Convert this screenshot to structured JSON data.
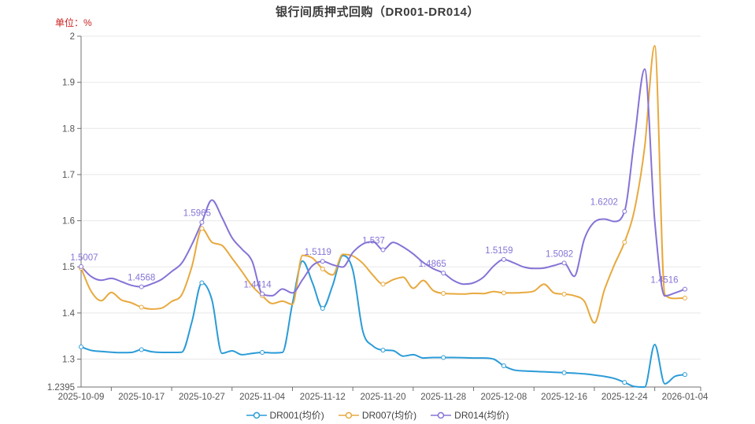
{
  "title": "银行间质押式回购（DR001-DR014）",
  "unit_label": "单位：%",
  "colors": {
    "title": "#3a3a3a",
    "unit": "#cc2222",
    "axis_line": "#707070",
    "grid_line": "#e8e8e8",
    "tick_text": "#555555",
    "value_label": "#8673d6"
  },
  "chart_data": {
    "type": "line",
    "title": "银行间质押式回购（DR001-DR014）",
    "ylabel": "单位：%",
    "ylim": [
      1.2395,
      2.0
    ],
    "y_ticks": [
      1.3,
      1.4,
      1.5,
      1.6,
      1.7,
      1.8,
      1.9,
      2
    ],
    "y_tick_labels": [
      "1.3",
      "1.4",
      "1.5",
      "1.6",
      "1.7",
      "1.8",
      "1.9",
      "2"
    ],
    "y_min_label": "1.2395",
    "x_tick_indices": [
      0,
      6,
      12,
      18,
      24,
      30,
      36,
      42,
      48,
      54,
      60
    ],
    "x_tick_labels": [
      "2025-10-09",
      "2025-10-17",
      "2025-10-27",
      "2025-11-04",
      "2025-11-12",
      "2025-11-20",
      "2025-11-28",
      "2025-12-08",
      "2025-12-16",
      "2025-12-24",
      "2026-01-04"
    ],
    "marker_interval": 6,
    "grid": true,
    "legend_position": "bottom",
    "series": [
      {
        "name": "DR001(均价)",
        "color": "#2b9bd7",
        "values": [
          1.3265,
          1.319,
          1.3165,
          1.315,
          1.314,
          1.3145,
          1.3205,
          1.316,
          1.3145,
          1.3145,
          1.315,
          1.38,
          1.4655,
          1.4285,
          1.3125,
          1.318,
          1.3095,
          1.3125,
          1.3145,
          1.3135,
          1.3145,
          1.42,
          1.5125,
          1.465,
          1.41,
          1.46,
          1.5245,
          1.493,
          1.36,
          1.3285,
          1.3195,
          1.3185,
          1.3065,
          1.3095,
          1.3025,
          1.3035,
          1.3035,
          1.3035,
          1.303,
          1.3025,
          1.3025,
          1.3,
          1.2855,
          1.2765,
          1.2745,
          1.2735,
          1.2725,
          1.2715,
          1.2705,
          1.2695,
          1.268,
          1.2655,
          1.2625,
          1.258,
          1.2495,
          1.2405,
          1.2395,
          1.3315,
          1.2465,
          1.2625,
          1.2665
        ]
      },
      {
        "name": "DR007(均价)",
        "color": "#e8a93e",
        "values": [
          1.497,
          1.447,
          1.4265,
          1.4445,
          1.4285,
          1.422,
          1.4125,
          1.4085,
          1.4105,
          1.425,
          1.4395,
          1.5,
          1.583,
          1.5535,
          1.5465,
          1.5185,
          1.4895,
          1.4585,
          1.4375,
          1.4205,
          1.4255,
          1.4185,
          1.525,
          1.519,
          1.4955,
          1.4825,
          1.527,
          1.5235,
          1.5075,
          1.482,
          1.4625,
          1.472,
          1.4775,
          1.4535,
          1.4705,
          1.4485,
          1.4425,
          1.4415,
          1.441,
          1.4425,
          1.442,
          1.4465,
          1.4435,
          1.4435,
          1.4445,
          1.4475,
          1.4625,
          1.4435,
          1.441,
          1.4375,
          1.4255,
          1.3785,
          1.45,
          1.505,
          1.5535,
          1.625,
          1.76,
          1.979,
          1.4405,
          1.4315,
          1.4325
        ]
      },
      {
        "name": "DR014(均价)",
        "color": "#8673d6",
        "values": [
          1.5007,
          1.479,
          1.471,
          1.475,
          1.468,
          1.46,
          1.4568,
          1.463,
          1.473,
          1.49,
          1.508,
          1.548,
          1.5965,
          1.645,
          1.607,
          1.563,
          1.538,
          1.512,
          1.4414,
          1.4375,
          1.452,
          1.4435,
          1.472,
          1.503,
          1.5119,
          1.5045,
          1.4995,
          1.531,
          1.5495,
          1.5545,
          1.537,
          1.553,
          1.543,
          1.528,
          1.5095,
          1.496,
          1.4865,
          1.4705,
          1.4625,
          1.4655,
          1.478,
          1.502,
          1.5159,
          1.5085,
          1.4995,
          1.4965,
          1.4975,
          1.503,
          1.5082,
          1.4795,
          1.56,
          1.597,
          1.6035,
          1.5985,
          1.6202,
          1.78,
          1.9285,
          1.6,
          1.437,
          1.4435,
          1.4516
        ],
        "point_labels": [
          {
            "index": 0,
            "text": "1.5007",
            "dx": 4
          },
          {
            "index": 6,
            "text": "1.4568",
            "dx": 0
          },
          {
            "index": 12,
            "text": "1.5965",
            "dx": -6
          },
          {
            "index": 18,
            "text": "1.4414",
            "dx": -6
          },
          {
            "index": 24,
            "text": "1.5119",
            "dx": -6
          },
          {
            "index": 30,
            "text": "1.537",
            "dx": -12
          },
          {
            "index": 36,
            "text": "1.4865",
            "dx": -14
          },
          {
            "index": 42,
            "text": "1.5159",
            "dx": -6
          },
          {
            "index": 48,
            "text": "1.5082",
            "dx": -6
          },
          {
            "index": 54,
            "text": "1.6202",
            "dx": -26
          },
          {
            "index": 60,
            "text": "1.4516",
            "dx": -26
          }
        ]
      }
    ]
  },
  "legend": {
    "items": [
      {
        "label": "DR001(均价)"
      },
      {
        "label": "DR007(均价)"
      },
      {
        "label": "DR014(均价)"
      }
    ]
  }
}
